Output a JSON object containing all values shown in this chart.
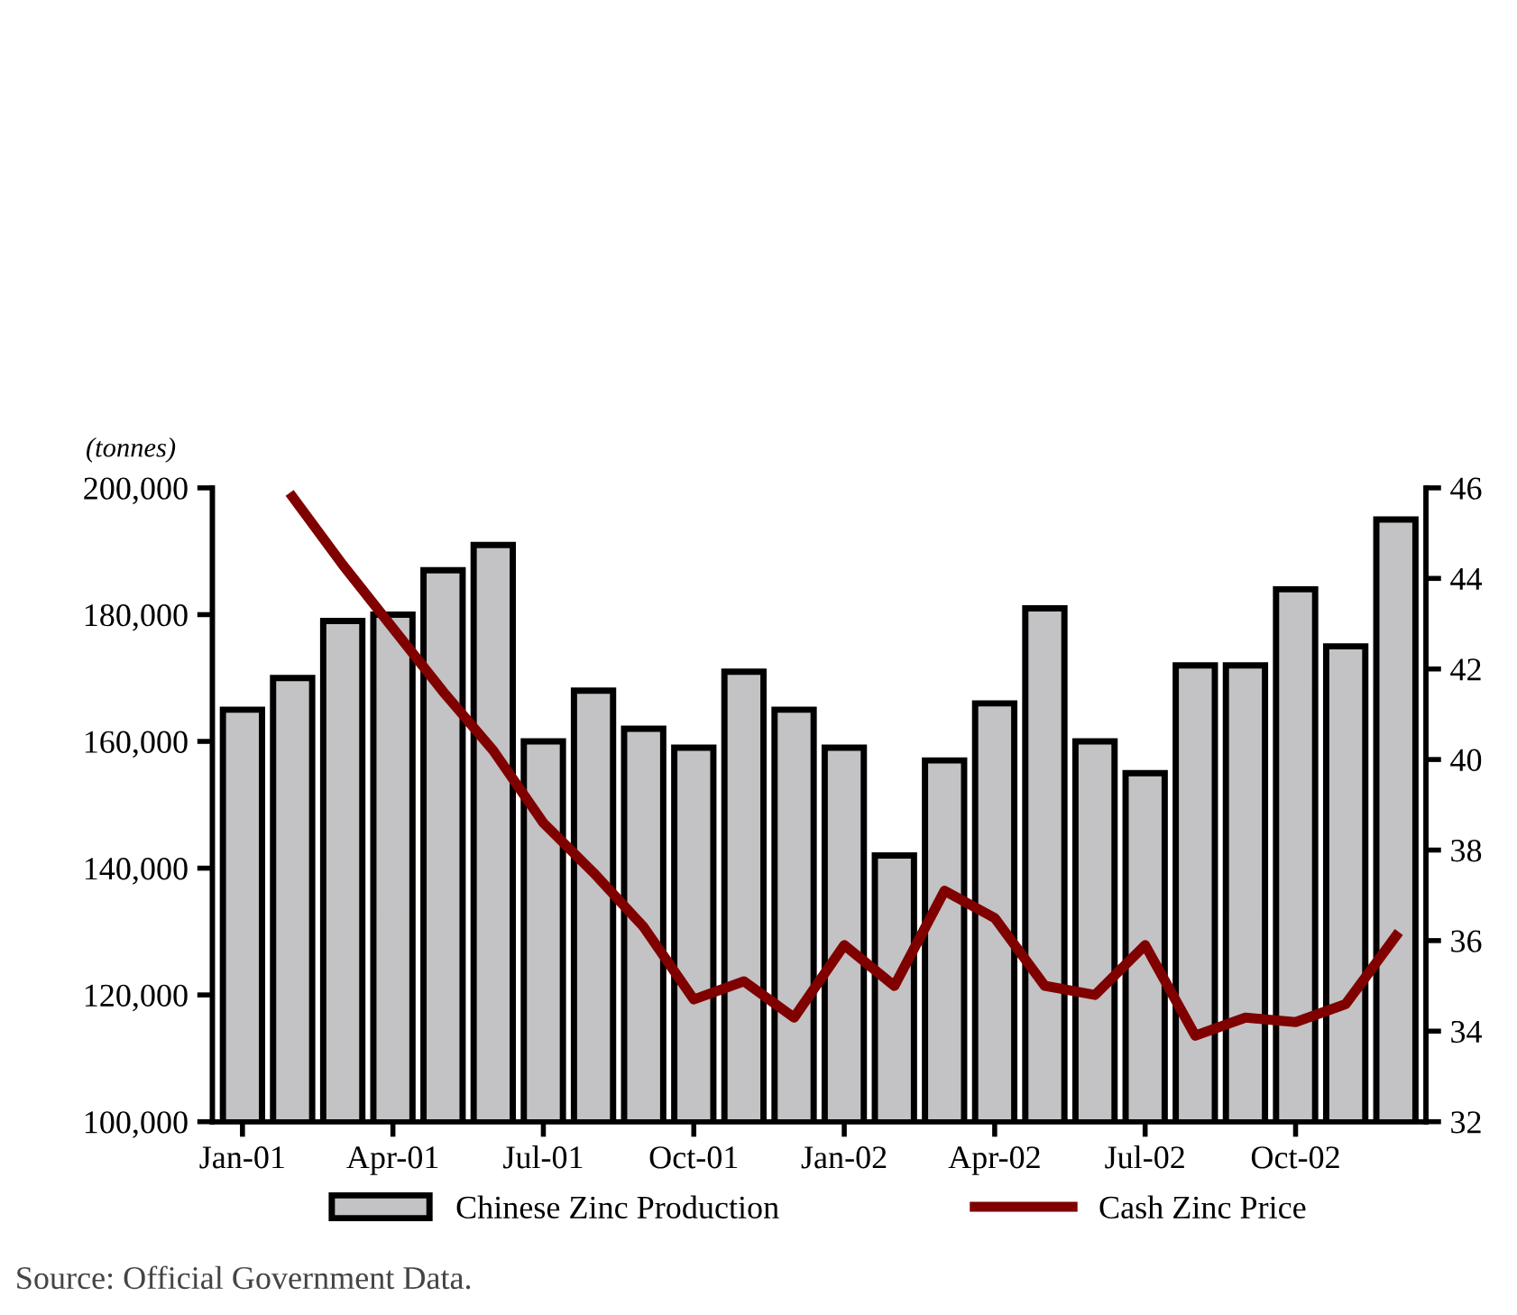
{
  "chart_data": {
    "type": "bar",
    "ylabel": "(tonnes)",
    "categories": [
      "Jan-01",
      null,
      null,
      "Apr-01",
      null,
      null,
      "Jul-01",
      null,
      null,
      "Oct-01",
      null,
      null,
      "Jan-02",
      null,
      null,
      "Apr-02",
      null,
      null,
      "Jul-02",
      null,
      null,
      "Oct-02",
      null,
      null
    ],
    "series": [
      {
        "name": "Chinese Zinc Production",
        "color": "#c3c2c4",
        "values": [
          165000,
          170000,
          179000,
          180000,
          187000,
          191000,
          160000,
          168000,
          162000,
          159000,
          171000,
          165000,
          159000,
          142000,
          157000,
          166000,
          181000,
          160000,
          155000,
          172000,
          172000,
          184000,
          175000,
          195000
        ]
      },
      {
        "name": "Cash Zinc Price",
        "type": "line",
        "axis": "y2",
        "color": "#800000",
        "values": [
          null,
          45.8,
          44.3,
          42.9,
          41.5,
          40.2,
          38.6,
          37.5,
          36.3,
          34.7,
          35.1,
          34.3,
          35.9,
          35.0,
          37.1,
          36.5,
          35.0,
          34.8,
          35.9,
          33.9,
          34.3,
          34.2,
          34.6,
          36.1
        ]
      }
    ],
    "ylim": [
      100000,
      200000
    ],
    "yticks": [
      {
        "value": 100000,
        "label": "100,000"
      },
      {
        "value": 120000,
        "label": "120,000"
      },
      {
        "value": 140000,
        "label": "140,000"
      },
      {
        "value": 160000,
        "label": "160,000"
      },
      {
        "value": 180000,
        "label": "180,000"
      },
      {
        "value": 200000,
        "label": "200,000"
      }
    ],
    "y2lim": [
      32,
      46
    ],
    "y2ticks": [
      32,
      34,
      36,
      38,
      40,
      42,
      44,
      46
    ],
    "grid": false,
    "legend": "bottom",
    "marker": "none",
    "line_style": "solid",
    "annotations": [
      "Source: Official Government Data."
    ]
  }
}
